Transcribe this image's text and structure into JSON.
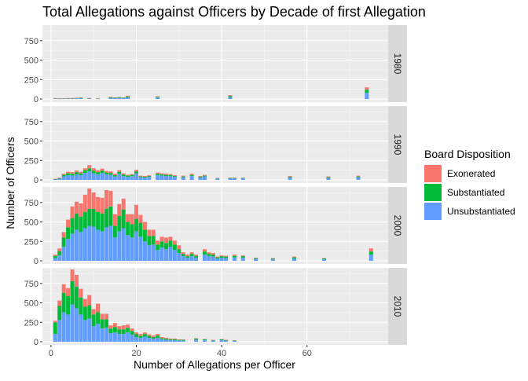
{
  "chart_data": {
    "type": "bar",
    "stacked": true,
    "faceted_by": "decade",
    "title": "Total Allegations against Officers by Decade of first Allegation",
    "xlabel": "Number of Allegations per Officer",
    "ylabel": "Number of Officers",
    "xlim": [
      -2,
      79
    ],
    "ylim": [
      -40,
      950
    ],
    "x_ticks": [
      0,
      20,
      40,
      60
    ],
    "y_ticks": [
      0,
      250,
      500,
      750
    ],
    "legend": {
      "title": "Board Disposition",
      "position": "right",
      "entries": [
        {
          "label": "Exonerated",
          "color": "#F8766D"
        },
        {
          "label": "Substantiated",
          "color": "#00BA38"
        },
        {
          "label": "Unsubstantiated",
          "color": "#619CFF"
        }
      ]
    },
    "series_names": [
      "Unsubstantiated",
      "Substantiated",
      "Exonerated"
    ],
    "series_colors": [
      "#619CFF",
      "#00BA38",
      "#F8766D"
    ],
    "panels": [
      {
        "label": "1980",
        "bars": [
          [
            1,
            5,
            5,
            2
          ],
          [
            2,
            4,
            5,
            2
          ],
          [
            3,
            5,
            4,
            2
          ],
          [
            4,
            5,
            4,
            3
          ],
          [
            5,
            6,
            4,
            3
          ],
          [
            6,
            8,
            5,
            3
          ],
          [
            7,
            10,
            5,
            5
          ],
          [
            9,
            6,
            4,
            3
          ],
          [
            11,
            4,
            2,
            2
          ],
          [
            14,
            15,
            8,
            7
          ],
          [
            15,
            10,
            6,
            4
          ],
          [
            16,
            12,
            8,
            5
          ],
          [
            17,
            10,
            6,
            4
          ],
          [
            18,
            20,
            12,
            10
          ],
          [
            25,
            18,
            10,
            8
          ],
          [
            42,
            25,
            15,
            10
          ],
          [
            74,
            80,
            40,
            30
          ]
        ]
      },
      {
        "label": "1990",
        "bars": [
          [
            1,
            8,
            4,
            3
          ],
          [
            2,
            15,
            8,
            7
          ],
          [
            3,
            45,
            20,
            15
          ],
          [
            4,
            60,
            25,
            20
          ],
          [
            5,
            55,
            25,
            20
          ],
          [
            6,
            70,
            30,
            20
          ],
          [
            7,
            60,
            25,
            20
          ],
          [
            8,
            90,
            35,
            25
          ],
          [
            9,
            110,
            40,
            40
          ],
          [
            10,
            85,
            35,
            30
          ],
          [
            11,
            70,
            30,
            25
          ],
          [
            12,
            90,
            30,
            25
          ],
          [
            13,
            70,
            25,
            20
          ],
          [
            14,
            65,
            25,
            20
          ],
          [
            15,
            45,
            15,
            20
          ],
          [
            16,
            80,
            25,
            20
          ],
          [
            17,
            50,
            20,
            15
          ],
          [
            18,
            40,
            15,
            10
          ],
          [
            19,
            50,
            15,
            10
          ],
          [
            20,
            85,
            25,
            20
          ],
          [
            21,
            35,
            10,
            10
          ],
          [
            22,
            30,
            10,
            10
          ],
          [
            23,
            40,
            10,
            10
          ],
          [
            25,
            60,
            20,
            15
          ],
          [
            26,
            55,
            15,
            15
          ],
          [
            27,
            50,
            15,
            15
          ],
          [
            28,
            50,
            15,
            10
          ],
          [
            29,
            40,
            10,
            10
          ],
          [
            31,
            35,
            10,
            10
          ],
          [
            33,
            50,
            15,
            15
          ],
          [
            35,
            30,
            10,
            10
          ],
          [
            36,
            45,
            10,
            10
          ],
          [
            39,
            15,
            5,
            5
          ],
          [
            42,
            20,
            5,
            5
          ],
          [
            43,
            20,
            5,
            5
          ],
          [
            45,
            20,
            5,
            5
          ],
          [
            56,
            30,
            10,
            10
          ],
          [
            65,
            25,
            10,
            10
          ],
          [
            72,
            35,
            10,
            10
          ]
        ]
      },
      {
        "label": "2000",
        "bars": [
          [
            1,
            35,
            30,
            15
          ],
          [
            2,
            70,
            55,
            35
          ],
          [
            3,
            180,
            120,
            70
          ],
          [
            4,
            280,
            150,
            100
          ],
          [
            5,
            350,
            200,
            150
          ],
          [
            6,
            400,
            210,
            150
          ],
          [
            7,
            370,
            200,
            170
          ],
          [
            8,
            420,
            210,
            220
          ],
          [
            9,
            450,
            220,
            260
          ],
          [
            10,
            440,
            230,
            210
          ],
          [
            11,
            400,
            230,
            190
          ],
          [
            12,
            380,
            230,
            200
          ],
          [
            13,
            430,
            240,
            240
          ],
          [
            14,
            450,
            250,
            200
          ],
          [
            15,
            300,
            150,
            150
          ],
          [
            16,
            380,
            200,
            150
          ],
          [
            17,
            420,
            240,
            140
          ],
          [
            18,
            330,
            170,
            100
          ],
          [
            19,
            300,
            170,
            130
          ],
          [
            20,
            380,
            160,
            180
          ],
          [
            21,
            310,
            180,
            100
          ],
          [
            22,
            250,
            150,
            100
          ],
          [
            23,
            200,
            120,
            80
          ],
          [
            24,
            210,
            110,
            80
          ],
          [
            25,
            140,
            70,
            50
          ],
          [
            26,
            170,
            80,
            60
          ],
          [
            27,
            150,
            80,
            70
          ],
          [
            28,
            180,
            80,
            50
          ],
          [
            29,
            140,
            70,
            50
          ],
          [
            30,
            100,
            50,
            50
          ],
          [
            31,
            60,
            30,
            20
          ],
          [
            32,
            40,
            20,
            20
          ],
          [
            33,
            60,
            30,
            20
          ],
          [
            34,
            40,
            25,
            15
          ],
          [
            36,
            80,
            40,
            30
          ],
          [
            37,
            60,
            30,
            20
          ],
          [
            38,
            55,
            25,
            20
          ],
          [
            39,
            30,
            15,
            10
          ],
          [
            40,
            40,
            20,
            10
          ],
          [
            41,
            35,
            20,
            10
          ],
          [
            43,
            45,
            20,
            15
          ],
          [
            45,
            40,
            20,
            10
          ],
          [
            48,
            25,
            10,
            5
          ],
          [
            52,
            20,
            10,
            5
          ],
          [
            57,
            30,
            15,
            10
          ],
          [
            64,
            20,
            10,
            5
          ],
          [
            75,
            80,
            40,
            40
          ]
        ]
      },
      {
        "label": "2010",
        "bars": [
          [
            1,
            100,
            150,
            20
          ],
          [
            2,
            280,
            180,
            70
          ],
          [
            3,
            380,
            250,
            110
          ],
          [
            4,
            350,
            240,
            100
          ],
          [
            5,
            480,
            300,
            150
          ],
          [
            6,
            430,
            280,
            150
          ],
          [
            7,
            350,
            220,
            110
          ],
          [
            8,
            280,
            170,
            100
          ],
          [
            9,
            300,
            170,
            130
          ],
          [
            10,
            200,
            150,
            70
          ],
          [
            11,
            230,
            150,
            110
          ],
          [
            12,
            170,
            120,
            70
          ],
          [
            13,
            180,
            110,
            70
          ],
          [
            14,
            110,
            60,
            40
          ],
          [
            15,
            120,
            70,
            50
          ],
          [
            16,
            100,
            60,
            40
          ],
          [
            17,
            100,
            60,
            50
          ],
          [
            18,
            120,
            60,
            40
          ],
          [
            19,
            90,
            50,
            30
          ],
          [
            20,
            60,
            40,
            20
          ],
          [
            21,
            50,
            25,
            25
          ],
          [
            22,
            65,
            35,
            20
          ],
          [
            23,
            50,
            25,
            20
          ],
          [
            24,
            40,
            20,
            20
          ],
          [
            25,
            50,
            30,
            20
          ],
          [
            26,
            30,
            15,
            15
          ],
          [
            27,
            25,
            15,
            10
          ],
          [
            28,
            20,
            10,
            10
          ],
          [
            29,
            20,
            10,
            10
          ],
          [
            30,
            15,
            10,
            5
          ],
          [
            31,
            15,
            10,
            5
          ],
          [
            34,
            25,
            15,
            5
          ],
          [
            36,
            20,
            10,
            5
          ],
          [
            38,
            15,
            5,
            5
          ],
          [
            40,
            20,
            10,
            5
          ],
          [
            41,
            15,
            5,
            5
          ],
          [
            43,
            10,
            5,
            5
          ]
        ]
      }
    ]
  }
}
